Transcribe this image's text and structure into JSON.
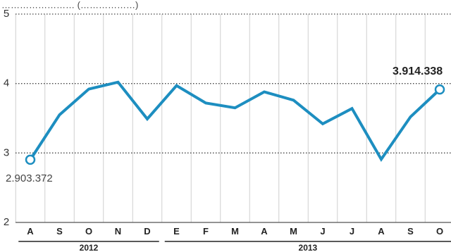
{
  "chart_data": {
    "type": "line",
    "title_partial": "…………………… (………………)",
    "categories": [
      "A",
      "S",
      "O",
      "N",
      "D",
      "E",
      "F",
      "M",
      "A",
      "M",
      "J",
      "J",
      "A",
      "S",
      "O"
    ],
    "years": [
      {
        "label": "2012",
        "from": 0,
        "to": 4
      },
      {
        "label": "2013",
        "from": 5,
        "to": 14
      }
    ],
    "ylim": [
      2,
      5
    ],
    "yticks": [
      "2",
      "3",
      "4",
      "5"
    ],
    "grid": true,
    "series": [
      {
        "values": [
          2.903372,
          3.55,
          3.92,
          4.02,
          3.49,
          3.97,
          3.72,
          3.65,
          3.88,
          3.76,
          3.42,
          3.64,
          2.91,
          3.52,
          3.914338
        ],
        "color": "#1d8ec0"
      }
    ],
    "annotations": {
      "start": "2.903.372",
      "end": "3.914.338"
    }
  }
}
